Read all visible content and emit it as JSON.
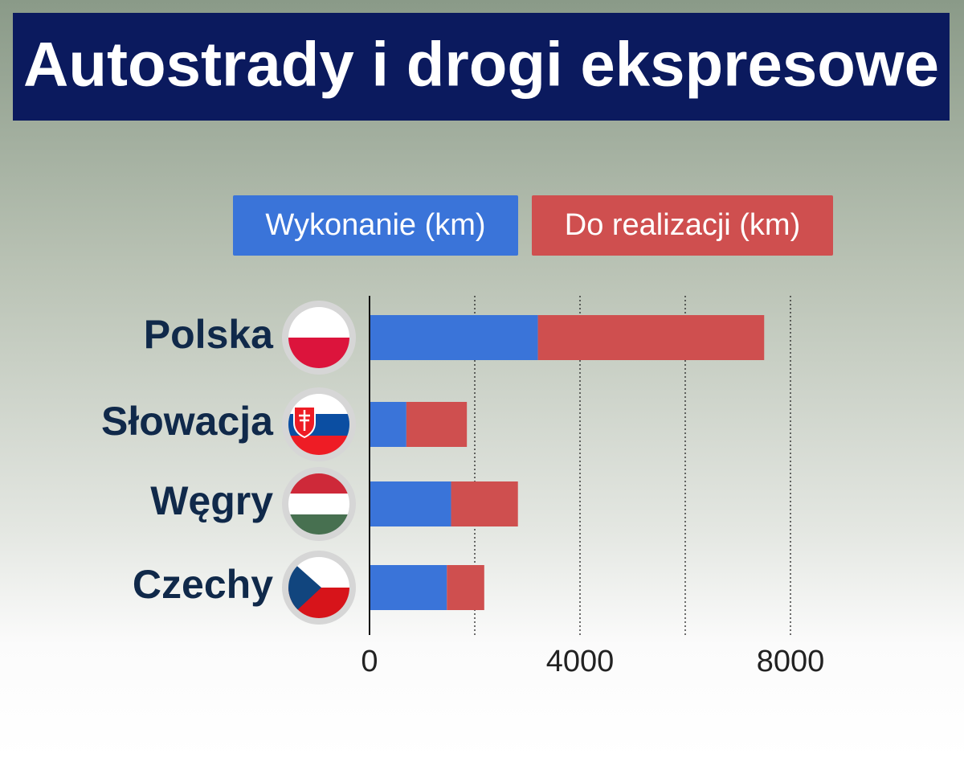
{
  "chart_data": {
    "type": "stacked-barh",
    "title": "Autostrady i drogi ekspresowe",
    "categories": [
      "Polska",
      "Słowacja",
      "Węgry",
      "Czechy"
    ],
    "series": [
      {
        "name": "Wykonanie (km)",
        "color": "#3a74d9",
        "values": [
          3200,
          700,
          1550,
          1470
        ]
      },
      {
        "name": "Do realizacji (km)",
        "color": "#cf4f4f",
        "values": [
          4300,
          1150,
          1270,
          710
        ]
      }
    ],
    "xlim": [
      0,
      8000
    ],
    "xticks": [
      0,
      4000,
      8000
    ],
    "xgrid": [
      2000,
      4000,
      6000,
      8000
    ],
    "grid": true
  }
}
